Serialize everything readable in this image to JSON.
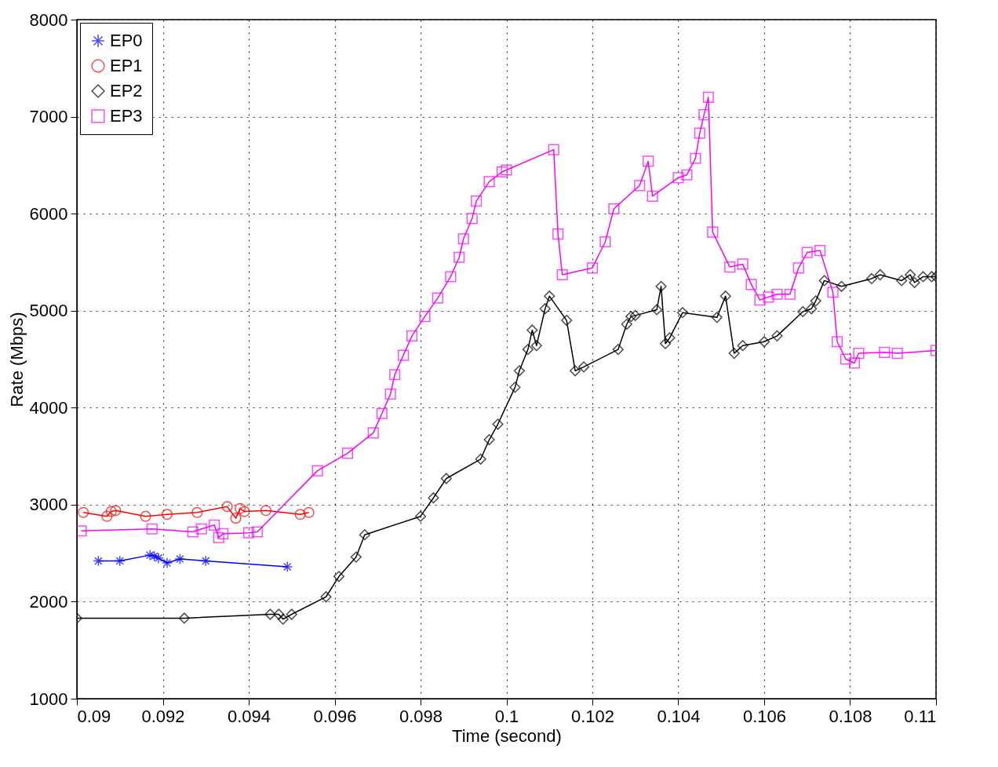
{
  "chart_data": {
    "type": "line",
    "xlabel": "Time (second)",
    "ylabel": "Rate (Mbps)",
    "xlim": [
      0.09,
      0.11
    ],
    "ylim": [
      1000,
      8000
    ],
    "xticks": [
      0.09,
      0.092,
      0.094,
      0.096,
      0.098,
      0.1,
      0.102,
      0.104,
      0.106,
      0.108,
      0.11
    ],
    "yticks": [
      1000,
      2000,
      3000,
      4000,
      5000,
      6000,
      7000,
      8000
    ],
    "grid": true,
    "legend": "top left",
    "line_style": "solid",
    "series": [
      {
        "name": "EP0",
        "color": "#0000ff",
        "marker": "cross",
        "x": [
          0.0905,
          0.091,
          0.0917,
          0.0918,
          0.0919,
          0.0921,
          0.0924,
          0.093,
          0.0949
        ],
        "values": [
          2420,
          2420,
          2480,
          2470,
          2450,
          2400,
          2440,
          2420,
          2360
        ]
      },
      {
        "name": "EP1",
        "color": "#ff0000",
        "marker": "circle",
        "x": [
          0.09015,
          0.0907,
          0.0908,
          0.0909,
          0.0916,
          0.0921,
          0.0928,
          0.0935,
          0.0937,
          0.0938,
          0.0939,
          0.0944,
          0.0952,
          0.0954
        ],
        "values": [
          2920,
          2880,
          2930,
          2940,
          2880,
          2900,
          2920,
          2980,
          2860,
          2960,
          2930,
          2940,
          2900,
          2920
        ]
      },
      {
        "name": "EP2",
        "color": "#000000",
        "marker": "diamond",
        "x": [
          0.09,
          0.0925,
          0.0945,
          0.0947,
          0.0948,
          0.095,
          0.0958,
          0.0961,
          0.0965,
          0.0967,
          0.098,
          0.0983,
          0.0986,
          0.0994,
          0.0996,
          0.0998,
          0.1002,
          0.1003,
          0.1005,
          0.1006,
          0.1007,
          0.1009,
          0.101,
          0.1014,
          0.1016,
          0.1018,
          0.1026,
          0.1028,
          0.1029,
          0.103,
          0.1035,
          0.1036,
          0.1037,
          0.1038,
          0.1041,
          0.1049,
          0.1051,
          0.1053,
          0.1055,
          0.106,
          0.1063,
          0.1069,
          0.1071,
          0.1072,
          0.1074,
          0.1078,
          0.1085,
          0.1087,
          0.1092,
          0.1094,
          0.1095,
          0.1097,
          0.1099,
          0.11
        ],
        "values": [
          1830,
          1830,
          1870,
          1870,
          1820,
          1870,
          2050,
          2260,
          2460,
          2690,
          2880,
          3070,
          3270,
          3470,
          3670,
          3830,
          4210,
          4380,
          4600,
          4800,
          4640,
          5020,
          5150,
          4900,
          4380,
          4420,
          4600,
          4860,
          4940,
          4950,
          5010,
          5250,
          4660,
          4720,
          4980,
          4930,
          5150,
          4560,
          4640,
          4680,
          4740,
          4990,
          5020,
          5100,
          5310,
          5250,
          5330,
          5370,
          5310,
          5370,
          5290,
          5350,
          5350,
          5350
        ]
      },
      {
        "name": "EP3",
        "color": "#ff00ff",
        "marker": "square",
        "x": [
          0.0901,
          0.09175,
          0.0927,
          0.0929,
          0.0932,
          0.0933,
          0.0934,
          0.094,
          0.0942,
          0.0956,
          0.0963,
          0.0969,
          0.0971,
          0.0973,
          0.0974,
          0.0976,
          0.0978,
          0.0981,
          0.0984,
          0.0987,
          0.0989,
          0.099,
          0.0992,
          0.0993,
          0.0996,
          0.0999,
          0.1,
          0.1011,
          0.1012,
          0.1013,
          0.102,
          0.1023,
          0.1025,
          0.1031,
          0.1033,
          0.1034,
          0.104,
          0.1042,
          0.1044,
          0.1045,
          0.1046,
          0.1047,
          0.1048,
          0.1052,
          0.1055,
          0.1057,
          0.1059,
          0.1061,
          0.1063,
          0.1066,
          0.1068,
          0.107,
          0.1073,
          0.1076,
          0.1077,
          0.1079,
          0.1081,
          0.1082,
          0.1088,
          0.1091,
          0.11
        ],
        "values": [
          2730,
          2750,
          2720,
          2750,
          2790,
          2660,
          2700,
          2710,
          2720,
          3350,
          3530,
          3740,
          3940,
          4140,
          4340,
          4540,
          4740,
          4940,
          5130,
          5350,
          5550,
          5740,
          5950,
          6130,
          6330,
          6430,
          6450,
          6660,
          5790,
          5370,
          5440,
          5710,
          6050,
          6290,
          6540,
          6180,
          6370,
          6400,
          6570,
          6830,
          7020,
          7200,
          5810,
          5450,
          5480,
          5270,
          5110,
          5140,
          5170,
          5170,
          5440,
          5600,
          5620,
          5190,
          4680,
          4500,
          4460,
          4560,
          4570,
          4560,
          4590
        ]
      }
    ]
  }
}
